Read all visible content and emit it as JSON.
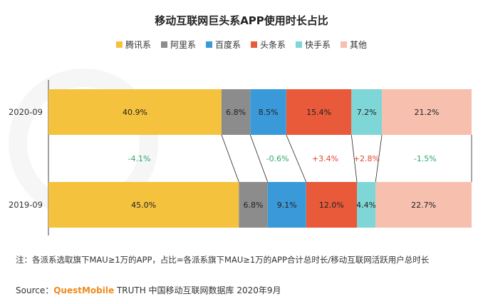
{
  "title": "移动互联网巨头系APP使用时长占比",
  "legend": [
    {
      "label": "腾讯系",
      "color": "#f5c23e"
    },
    {
      "label": "阿里系",
      "color": "#8c8c8c"
    },
    {
      "label": "百度系",
      "color": "#3a9ad9"
    },
    {
      "label": "头条系",
      "color": "#e85a3a"
    },
    {
      "label": "快手系",
      "color": "#7fd6d6"
    },
    {
      "label": "其他",
      "color": "#f6bfae"
    }
  ],
  "chart_data": {
    "type": "bar",
    "orientation": "horizontal",
    "stacked": true,
    "percent_stacked": true,
    "categories": [
      "2020-09",
      "2019-09"
    ],
    "series": [
      {
        "name": "腾讯系",
        "values": [
          40.9,
          45.0
        ]
      },
      {
        "name": "阿里系",
        "values": [
          6.8,
          6.8
        ]
      },
      {
        "name": "百度系",
        "values": [
          8.5,
          9.1
        ]
      },
      {
        "name": "头条系",
        "values": [
          15.4,
          12.0
        ]
      },
      {
        "name": "快手系",
        "values": [
          7.2,
          4.4
        ]
      },
      {
        "name": "其他",
        "values": [
          21.2,
          22.7
        ]
      }
    ],
    "value_labels": [
      [
        "40.9%",
        "6.8%",
        "8.5%",
        "15.4%",
        "7.2%",
        "21.2%"
      ],
      [
        "45.0%",
        "6.8%",
        "9.1%",
        "12.0%",
        "4.4%",
        "22.7%"
      ]
    ],
    "changes": [
      {
        "label": "-4.1%",
        "direction": "down"
      },
      {
        "label": "",
        "direction": "none"
      },
      {
        "label": "-0.6%",
        "direction": "down"
      },
      {
        "label": "+3.4%",
        "direction": "up"
      },
      {
        "label": "+2.8%",
        "direction": "up"
      },
      {
        "label": "-1.5%",
        "direction": "down"
      }
    ],
    "change_colors": {
      "up": "#e2462f",
      "down": "#2ea86b"
    },
    "legend_position": "top",
    "grid": false
  },
  "note": "注：各派系选取旗下MAU≥1万的APP，占比=各派系旗下MAU≥1万的APP合计总时长/移动互联网活跃用户总时长",
  "source": {
    "prefix": "Source：",
    "brand": "QuestMobile",
    "rest": " TRUTH 中国移动互联网数据库 2020年9月"
  }
}
